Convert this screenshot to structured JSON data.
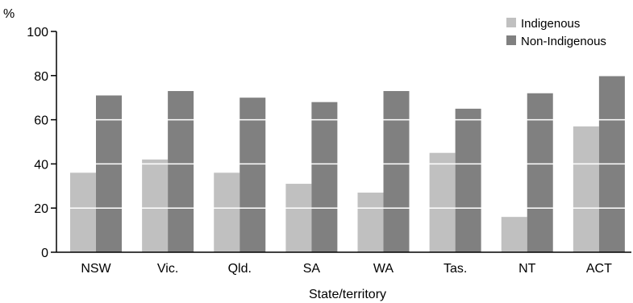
{
  "chart_data": {
    "type": "bar",
    "title": "",
    "xlabel": "State/territory",
    "ylabel": "%",
    "ylim": [
      0,
      100
    ],
    "yticks": [
      0,
      20,
      40,
      60,
      80,
      100
    ],
    "grid": "white horizontal lines drawn over bars",
    "legend_position": "top-right",
    "categories": [
      "NSW",
      "Vic.",
      "Qld.",
      "SA",
      "WA",
      "Tas.",
      "NT",
      "ACT"
    ],
    "series": [
      {
        "name": "Indigenous",
        "color": "#c0c0c0",
        "values": [
          36,
          42,
          36,
          31,
          27,
          45,
          16,
          57
        ]
      },
      {
        "name": "Non-Indigenous",
        "color": "#808080",
        "values": [
          71,
          73,
          70,
          68,
          73,
          65,
          72,
          80
        ]
      }
    ]
  }
}
